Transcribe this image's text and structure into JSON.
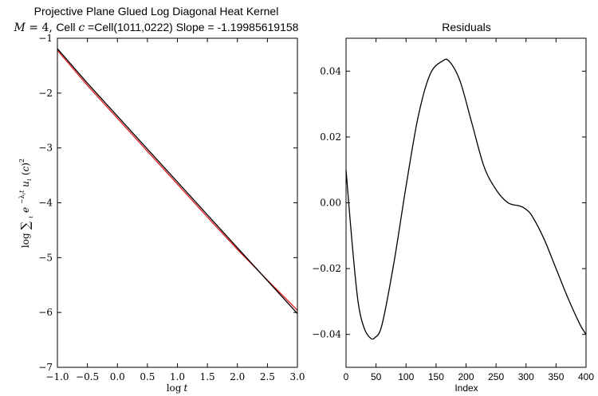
{
  "chart_data": [
    {
      "type": "line",
      "title": "Projective Plane Glued Log Diagonal Heat Kernel",
      "subtitle": "M = 4, Cell c =Cell(1011,0222) Slope = -1.19985619158",
      "subtitle_parts": {
        "m_var": "M",
        "m_eq": " = 4, ",
        "cell_prefix": "Cell ",
        "c_var": "c",
        "cell_suffix": " =Cell(1011,0222) Slope = -1.19985619158"
      },
      "xlabel": "log t",
      "ylabel": "log ∑ e^(−λ t) u (c)²",
      "xlim": [
        -1.0,
        3.0
      ],
      "ylim": [
        -7,
        -1
      ],
      "xticks": [
        "−1.0",
        "−0.5",
        "0.0",
        "0.5",
        "1.0",
        "1.5",
        "2.0",
        "2.5",
        "3.0"
      ],
      "yticks": [
        "−7",
        "−6",
        "−5",
        "−4",
        "−3",
        "−2",
        "−1"
      ],
      "series": [
        {
          "color": "#e41a1c",
          "x": [
            -1.0,
            -0.5,
            0.0,
            0.5,
            1.0,
            1.5,
            2.0,
            2.5,
            3.0
          ],
          "y": [
            -1.22,
            -1.86,
            -2.46,
            -3.06,
            -3.66,
            -4.26,
            -4.85,
            -5.41,
            -5.96
          ]
        },
        {
          "color": "#000000",
          "x": [
            -1.0,
            -0.5,
            0.0,
            0.5,
            1.0,
            1.5,
            2.0,
            2.5,
            3.0
          ],
          "y": [
            -1.19,
            -1.82,
            -2.42,
            -3.02,
            -3.62,
            -4.22,
            -4.82,
            -5.42,
            -6.02
          ]
        }
      ]
    },
    {
      "type": "line",
      "title": "Residuals",
      "xlabel": "Index",
      "xlim": [
        0,
        400
      ],
      "ylim": [
        -0.05,
        0.05
      ],
      "xticks": [
        "0",
        "50",
        "100",
        "150",
        "200",
        "250",
        "300",
        "350",
        "400"
      ],
      "yticks": [
        "−0.04",
        "−0.02",
        "0.00",
        "0.02",
        "0.04"
      ],
      "series": [
        {
          "color": "#000000",
          "x": [
            0,
            10,
            20,
            30,
            40,
            48,
            60,
            80,
            100,
            120,
            140,
            160,
            172,
            190,
            210,
            230,
            250,
            270,
            290,
            300,
            310,
            330,
            350,
            370,
            390,
            400
          ],
          "y": [
            0.01,
            -0.012,
            -0.03,
            -0.038,
            -0.041,
            -0.041,
            -0.037,
            -0.018,
            0.005,
            0.026,
            0.039,
            0.043,
            0.043,
            0.037,
            0.024,
            0.011,
            0.004,
            0.0,
            -0.001,
            -0.002,
            -0.004,
            -0.011,
            -0.02,
            -0.029,
            -0.037,
            -0.04
          ]
        }
      ]
    }
  ]
}
